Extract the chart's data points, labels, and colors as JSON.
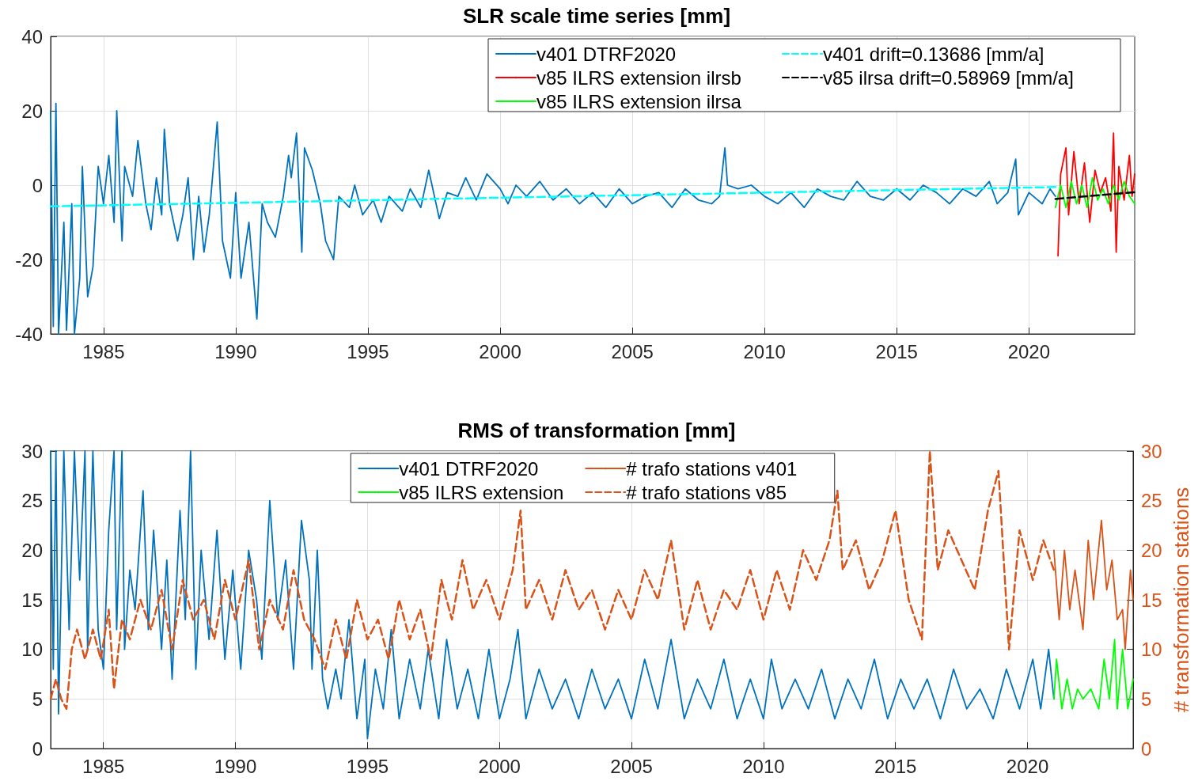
{
  "chart_data": [
    {
      "type": "line",
      "title": "SLR scale time series [mm]",
      "xlim": [
        1983,
        2024
      ],
      "xticks": [
        1985,
        1990,
        1995,
        2000,
        2005,
        2010,
        2015,
        2020
      ],
      "ylim": [
        -40,
        40
      ],
      "yticks": [
        -40,
        -20,
        0,
        20,
        40
      ],
      "grid": true,
      "legend": "top right",
      "series": [
        {
          "name": "v401 DTRF2020",
          "color": "#0072bd",
          "x": [
            1983.0,
            1983.1,
            1983.2,
            1983.3,
            1983.5,
            1983.6,
            1983.8,
            1983.9,
            1984.1,
            1984.2,
            1984.4,
            1984.6,
            1984.8,
            1985.0,
            1985.2,
            1985.4,
            1985.5,
            1985.7,
            1985.8,
            1986.1,
            1986.3,
            1986.6,
            1986.8,
            1987.0,
            1987.2,
            1987.3,
            1987.5,
            1987.8,
            1988.0,
            1988.2,
            1988.4,
            1988.6,
            1988.8,
            1989.0,
            1989.3,
            1989.5,
            1989.8,
            1990.0,
            1990.2,
            1990.5,
            1990.8,
            1991.0,
            1991.2,
            1991.5,
            1991.8,
            1992.0,
            1992.1,
            1992.3,
            1992.5,
            1992.6,
            1992.9,
            1993.2,
            1993.4,
            1993.7,
            1993.9,
            1994.3,
            1994.5,
            1994.8,
            1995.2,
            1995.5,
            1995.8,
            1996.3,
            1996.6,
            1997.0,
            1997.3,
            1997.7,
            1998.0,
            1998.4,
            1998.7,
            1999.1,
            1999.5,
            2000.0,
            2000.3,
            2000.6,
            2001.0,
            2001.5,
            2002.0,
            2002.5,
            2003.0,
            2003.5,
            2004.0,
            2004.5,
            2005.0,
            2005.5,
            2006.0,
            2006.5,
            2007.0,
            2007.5,
            2008.0,
            2008.3,
            2008.5,
            2008.6,
            2009.0,
            2009.5,
            2010.0,
            2010.5,
            2011.0,
            2011.5,
            2012.0,
            2012.5,
            2013.0,
            2013.5,
            2014.0,
            2014.5,
            2015.0,
            2015.5,
            2016.0,
            2016.5,
            2017.0,
            2017.5,
            2018.0,
            2018.5,
            2018.8,
            2019.2,
            2019.5,
            2019.6,
            2020.0,
            2020.5,
            2020.8,
            2021.0
          ],
          "values": [
            20,
            -38,
            22,
            -40,
            -10,
            -39,
            -5,
            -40,
            -25,
            5,
            -30,
            -22,
            5,
            -5,
            8,
            -10,
            20,
            -15,
            5,
            -3,
            12,
            -5,
            -12,
            2,
            -8,
            15,
            -5,
            -15,
            -8,
            2,
            -20,
            -3,
            -18,
            -8,
            17,
            -15,
            -25,
            -2,
            -25,
            -10,
            -36,
            -5,
            -10,
            -14,
            -3,
            8,
            2,
            14,
            -18,
            10,
            4,
            -5,
            -15,
            -20,
            -3,
            -6,
            0,
            -8,
            -4,
            -10,
            -3,
            -7,
            -1,
            -6,
            4,
            -9,
            -2,
            -3,
            2,
            -4,
            3,
            -1,
            -5,
            0,
            -3,
            1,
            -4,
            -1,
            -5,
            -2,
            -6,
            -1,
            -5,
            -3,
            -2,
            -6,
            -1,
            -4,
            -5,
            -3,
            10,
            0,
            -1,
            0,
            -3,
            -5,
            -2,
            -6,
            -1,
            -3,
            -4,
            1,
            -3,
            -4,
            -1,
            -4,
            0,
            -2,
            -5,
            -1,
            -3,
            1,
            -5,
            -2,
            7,
            -8,
            -2,
            -5,
            -1,
            -3
          ]
        },
        {
          "name": "v85 ILRS extension ilrsb",
          "color": "#ff0000",
          "x": [
            2021.1,
            2021.2,
            2021.4,
            2021.5,
            2021.7,
            2021.9,
            2022.1,
            2022.3,
            2022.5,
            2022.7,
            2022.9,
            2023.1,
            2023.2,
            2023.3,
            2023.4,
            2023.6,
            2023.8,
            2023.9,
            2024.0
          ],
          "values": [
            -19,
            3,
            10,
            -8,
            9,
            -5,
            6,
            -10,
            4,
            -2,
            2,
            -7,
            14,
            -18,
            5,
            -4,
            8,
            -3,
            3
          ]
        },
        {
          "name": "v85 ILRS extension ilrsa",
          "color": "#00ff00",
          "x": [
            2021.0,
            2021.2,
            2021.4,
            2021.6,
            2021.8,
            2022.0,
            2022.2,
            2022.4,
            2022.6,
            2022.8,
            2023.0,
            2023.2,
            2023.4,
            2023.6,
            2023.8,
            2024.0
          ],
          "values": [
            -6,
            0,
            -6,
            1,
            -5,
            0,
            -6,
            2,
            -4,
            -1,
            -5,
            0,
            -4,
            1,
            -3,
            -5
          ]
        },
        {
          "name": "v401 drift=0.13686 [mm/a]",
          "color": "#00ffff",
          "line_style": "dashed",
          "x": [
            1983,
            2021
          ],
          "values": [
            -5.7,
            -0.5
          ]
        },
        {
          "name": "v85 ilrsa drift=0.58969 [mm/a]",
          "color": "#000000",
          "line_style": "dashed",
          "x": [
            2021,
            2024
          ],
          "values": [
            -3.7,
            -1.9
          ]
        }
      ]
    },
    {
      "type": "line",
      "title": "RMS of transformation [mm]",
      "y2label": "# transformation stations",
      "xlim": [
        1983,
        2024
      ],
      "xticks": [
        1985,
        1990,
        1995,
        2000,
        2005,
        2010,
        2015,
        2020
      ],
      "ylim": [
        0,
        30
      ],
      "yticks": [
        0,
        5,
        10,
        15,
        20,
        25,
        30
      ],
      "y2lim": [
        0,
        30
      ],
      "y2ticks": [
        0,
        5,
        10,
        15,
        20,
        25,
        30
      ],
      "grid": true,
      "legend": "top",
      "series": [
        {
          "name": "v401 DTRF2020",
          "color": "#0072bd",
          "x": [
            1983.0,
            1983.1,
            1983.2,
            1983.3,
            1983.5,
            1983.7,
            1983.9,
            1984.1,
            1984.3,
            1984.4,
            1984.6,
            1984.8,
            1985.0,
            1985.2,
            1985.4,
            1985.5,
            1985.7,
            1985.8,
            1986.0,
            1986.2,
            1986.5,
            1986.7,
            1986.9,
            1987.2,
            1987.4,
            1987.6,
            1987.9,
            1988.1,
            1988.3,
            1988.5,
            1988.7,
            1989.0,
            1989.3,
            1989.6,
            1989.9,
            1990.2,
            1990.5,
            1990.8,
            1991.0,
            1991.3,
            1991.6,
            1991.9,
            1992.2,
            1992.5,
            1992.8,
            1992.9,
            1993.1,
            1993.3,
            1993.5,
            1993.8,
            1994.0,
            1994.3,
            1994.6,
            1994.9,
            1995.0,
            1995.3,
            1995.6,
            1995.9,
            1996.2,
            1996.6,
            1997.0,
            1997.3,
            1997.7,
            1998.0,
            1998.4,
            1998.8,
            1999.2,
            1999.6,
            2000.0,
            2000.4,
            2000.7,
            2001.0,
            2001.5,
            2002.0,
            2002.5,
            2003.0,
            2003.5,
            2004.0,
            2004.5,
            2005.0,
            2005.5,
            2006.0,
            2006.5,
            2007.0,
            2007.5,
            2008.0,
            2008.5,
            2009.0,
            2009.5,
            2010.0,
            2010.3,
            2010.7,
            2011.2,
            2011.7,
            2012.2,
            2012.7,
            2013.2,
            2013.7,
            2014.2,
            2014.7,
            2015.2,
            2015.7,
            2016.2,
            2016.7,
            2017.2,
            2017.7,
            2018.2,
            2018.7,
            2019.2,
            2019.7,
            2020.2,
            2020.5,
            2020.8,
            2021.0
          ],
          "values": [
            30,
            8,
            30,
            3.5,
            30,
            12,
            30,
            17,
            30,
            10,
            30,
            12,
            8,
            22,
            30,
            12,
            30,
            10,
            18,
            14,
            26,
            12,
            22,
            10,
            19,
            7,
            24,
            13,
            30,
            8,
            20,
            11,
            22,
            9,
            18,
            8,
            20,
            15,
            9,
            25,
            13,
            19,
            8,
            23,
            17,
            8,
            20,
            7,
            4,
            8,
            5,
            13,
            3,
            9,
            1,
            8,
            4,
            12,
            3,
            9,
            4,
            10,
            3,
            11,
            4,
            8,
            3,
            10,
            3,
            7,
            12,
            3,
            8,
            4,
            7,
            3,
            8,
            4,
            7,
            3,
            9,
            4,
            11,
            3,
            7,
            4,
            9,
            3,
            7,
            3,
            9,
            4,
            7,
            4,
            8,
            3,
            7,
            4,
            9,
            3,
            7,
            4,
            7,
            3,
            8,
            4,
            6,
            3,
            8,
            4,
            9,
            4,
            10,
            5
          ]
        },
        {
          "name": "v85 ILRS extension",
          "color": "#00ff00",
          "x": [
            2021.0,
            2021.1,
            2021.3,
            2021.5,
            2021.7,
            2021.9,
            2022.1,
            2022.4,
            2022.7,
            2022.9,
            2023.1,
            2023.3,
            2023.4,
            2023.6,
            2023.8,
            2024.0
          ],
          "values": [
            5,
            9,
            4,
            7,
            4,
            6,
            5,
            6,
            4,
            9,
            5,
            11,
            4,
            10,
            4,
            7
          ]
        },
        {
          "name": "# trafo stations v401",
          "color": "#d95319",
          "axis": "y2",
          "x": [
            2021.0,
            2021.2,
            2021.4,
            2021.6,
            2021.8,
            2022.1,
            2022.3,
            2022.5,
            2022.8,
            2023.0,
            2023.2,
            2023.4,
            2023.6,
            2023.7,
            2023.9,
            2024.0
          ],
          "values": [
            20,
            13,
            20,
            14,
            18,
            12,
            21,
            15,
            23,
            16,
            19,
            13,
            14,
            10,
            18,
            15
          ]
        },
        {
          "name": "# trafo stations v85",
          "color": "#d95319",
          "axis": "y2",
          "line_style": "dashed",
          "x": [
            1983.0,
            1983.2,
            1983.4,
            1983.6,
            1983.8,
            1984.0,
            1984.3,
            1984.6,
            1984.9,
            1985.2,
            1985.4,
            1985.7,
            1986.0,
            1986.4,
            1986.8,
            1987.2,
            1987.6,
            1988.0,
            1988.4,
            1988.8,
            1989.2,
            1989.6,
            1990.0,
            1990.5,
            1990.9,
            1991.3,
            1991.8,
            1992.2,
            1992.6,
            1993.0,
            1993.4,
            1993.8,
            1994.2,
            1994.6,
            1995.0,
            1995.4,
            1995.8,
            1996.2,
            1996.6,
            1997.0,
            1997.4,
            1997.8,
            1998.2,
            1998.6,
            1999.0,
            1999.5,
            2000.0,
            2000.5,
            2000.8,
            2001.0,
            2001.5,
            2002.0,
            2002.5,
            2003.0,
            2003.5,
            2004.0,
            2004.5,
            2005.0,
            2005.5,
            2006.0,
            2006.5,
            2007.0,
            2007.5,
            2008.0,
            2008.5,
            2009.0,
            2009.5,
            2010.0,
            2010.5,
            2011.0,
            2011.5,
            2012.0,
            2012.5,
            2012.8,
            2013.0,
            2013.5,
            2014.0,
            2014.5,
            2015.0,
            2015.5,
            2016.0,
            2016.3,
            2016.6,
            2017.0,
            2017.5,
            2018.0,
            2018.5,
            2018.9,
            2019.3,
            2019.7,
            2020.2,
            2020.6,
            2021.0
          ],
          "values": [
            5,
            7,
            5,
            4,
            10,
            12,
            9,
            12,
            9,
            14,
            6,
            13,
            11,
            15,
            12,
            16,
            10,
            17,
            13,
            15,
            11,
            17,
            13,
            19,
            10,
            15,
            12,
            18,
            13,
            11,
            8,
            13,
            9,
            15,
            11,
            13,
            9,
            15,
            11,
            14,
            9,
            17,
            13,
            19,
            14,
            17,
            13,
            18,
            24,
            14,
            17,
            13,
            18,
            14,
            16,
            12,
            16,
            13,
            18,
            15,
            21,
            12,
            17,
            12,
            16,
            14,
            18,
            13,
            18,
            14,
            20,
            17,
            21,
            26,
            18,
            21,
            16,
            19,
            24,
            15,
            11,
            30,
            18,
            22,
            19,
            16,
            24,
            28,
            10,
            22,
            17,
            21,
            18
          ]
        }
      ]
    }
  ]
}
